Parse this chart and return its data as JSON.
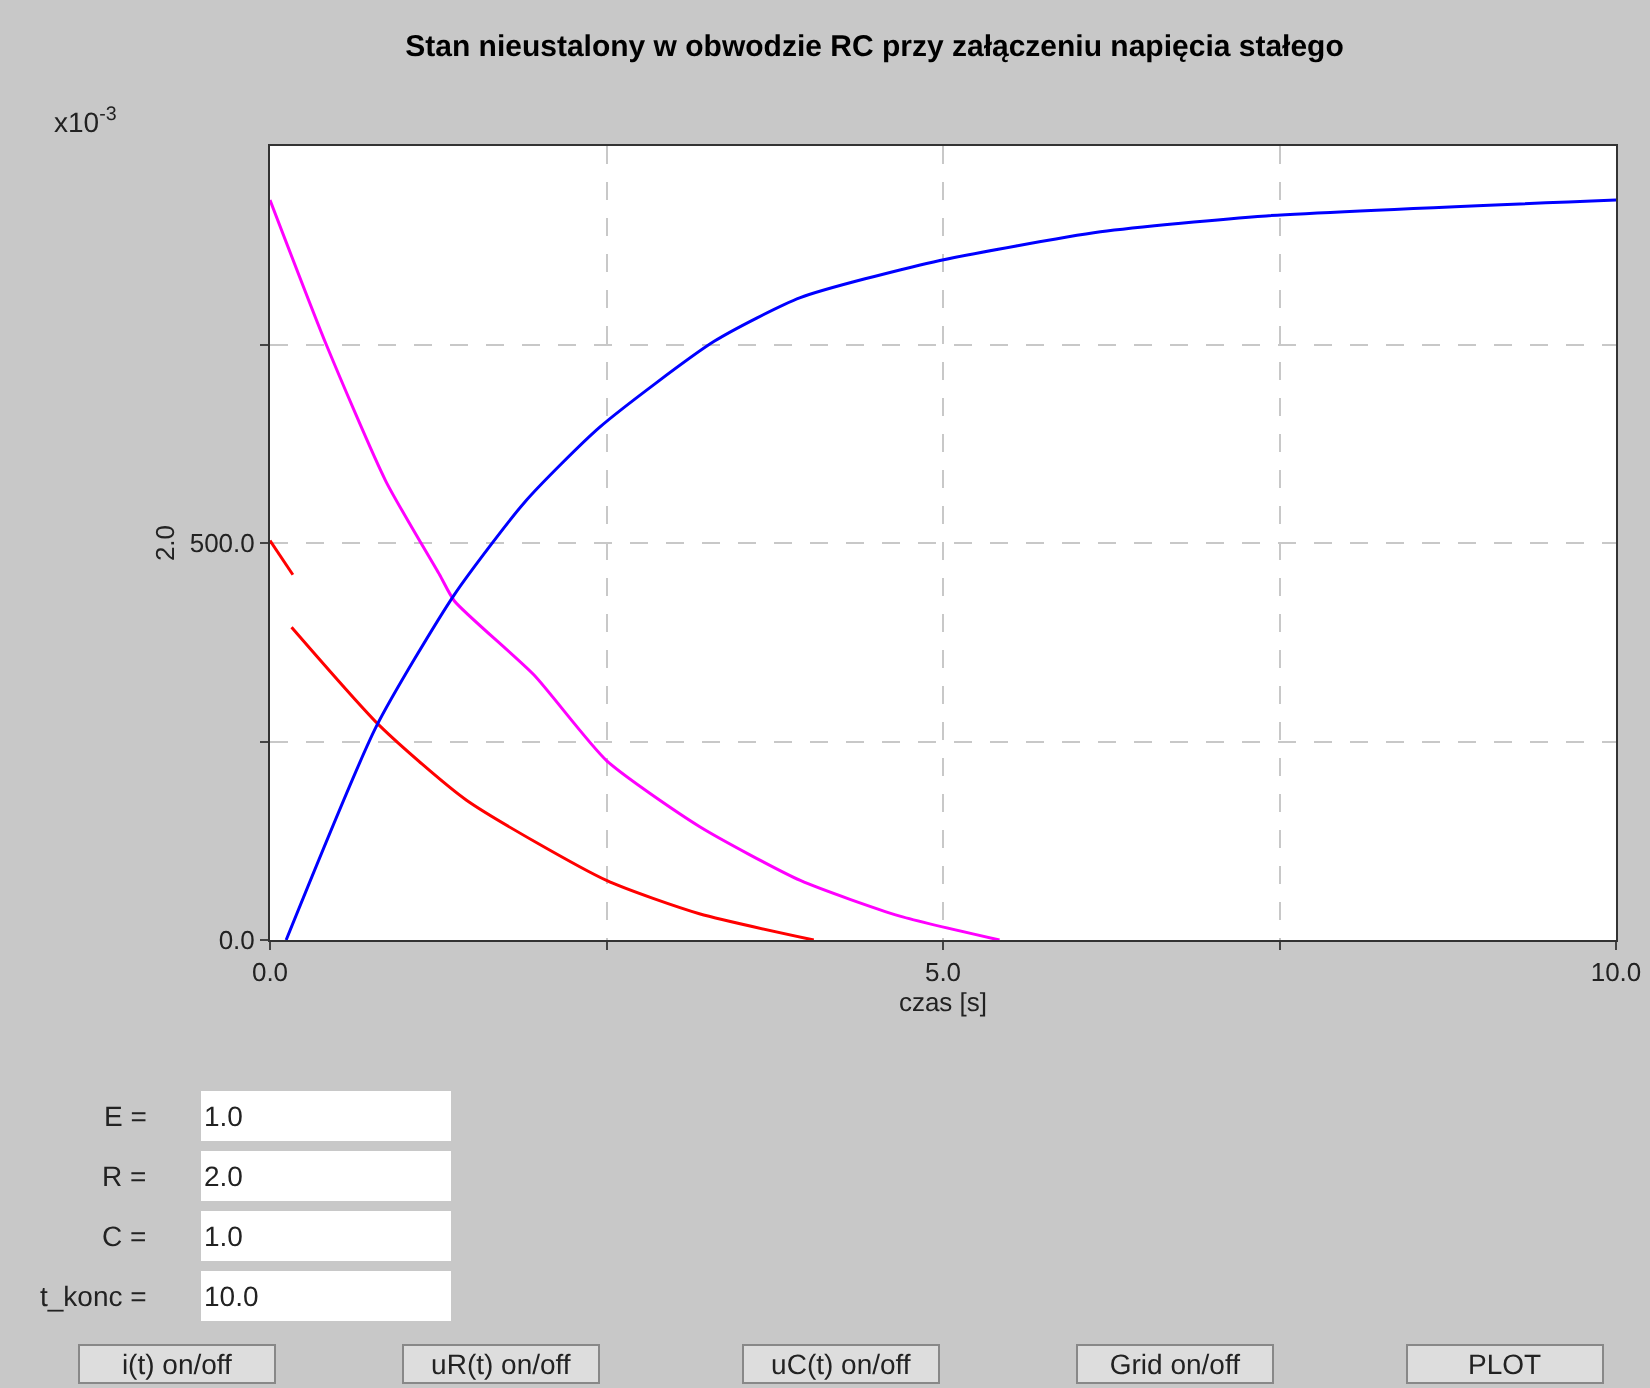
{
  "chart_data": {
    "type": "line",
    "title": "Stan nieustalony w obwodzie RC przy załączeniu napięcia stałego",
    "xlabel": "czas [s]",
    "ylabel": "2.0",
    "xlim": [
      0,
      10
    ],
    "ylim": [
      0,
      1000
    ],
    "xticks": [
      {
        "value": 0,
        "label": "0.0"
      },
      {
        "value": 2.5,
        "label": null
      },
      {
        "value": 5,
        "label": "5.0"
      },
      {
        "value": 7.5,
        "label": null
      },
      {
        "value": 10,
        "label": "10.0"
      }
    ],
    "yticks": [
      {
        "value": 0,
        "label": "0.0"
      },
      {
        "value": 250,
        "label": null
      },
      {
        "value": 500,
        "label": "500.0"
      },
      {
        "value": 750,
        "label": null
      }
    ],
    "grid": true,
    "marker": "none",
    "series": [
      {
        "color": "#ff0000",
        "x": [
          0,
          0.17
        ],
        "values": [
          503,
          460
        ]
      },
      {
        "color": "#ff0000",
        "x": [
          0.16,
          0.82,
          1.46,
          2.5,
          3.19,
          4.04
        ],
        "values": [
          394,
          269,
          176,
          75,
          33,
          0
        ]
      },
      {
        "color": "#ff00ff",
        "x": [
          0,
          0.42,
          0.86,
          1.26,
          1.37,
          1.96,
          2.5,
          3.19,
          3.94,
          4.68,
          5.42
        ],
        "values": [
          932,
          749,
          578,
          460,
          427,
          334,
          226,
          143,
          75,
          30,
          0
        ]
      },
      {
        "color": "#0000ff",
        "x": [
          0.12,
          0.79,
          1.37,
          1.9,
          2.45,
          3.3,
          3.94,
          4.93,
          6.17,
          7.4,
          10
        ],
        "values": [
          0,
          269,
          435,
          553,
          646,
          754,
          809,
          854,
          892,
          912,
          932
        ]
      }
    ],
    "annotations": [
      "x10$^{-3}$",
      "E =",
      "1.0",
      "R =",
      "2.0",
      "C =",
      "1.0",
      "t_konc =",
      "10.0",
      "i(t) on/off",
      "uR(t) on/off",
      "uC(t) on/off",
      "Grid on/off",
      "PLOT"
    ]
  }
}
